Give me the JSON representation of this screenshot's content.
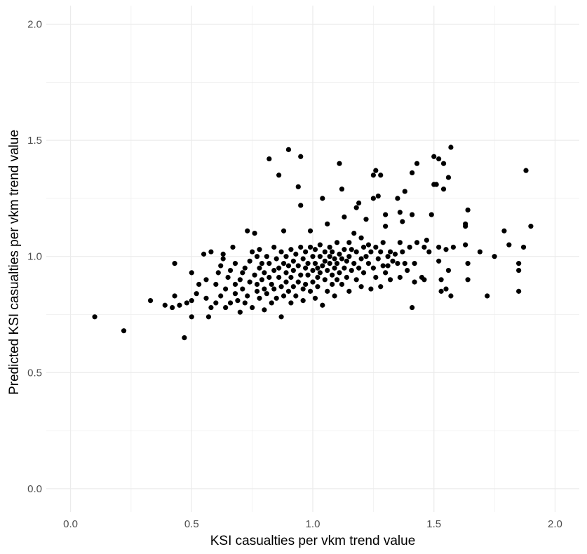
{
  "chart_data": {
    "type": "scatter",
    "title": "",
    "xlabel": "KSI casualties per vkm trend value",
    "ylabel": "Predicted KSI casualties per vkm trend value",
    "xlim": [
      -0.1,
      2.1
    ],
    "ylim": [
      -0.1,
      2.08
    ],
    "x_ticks": [
      "0.0",
      "0.5",
      "1.0",
      "1.5",
      "2.0"
    ],
    "y_ticks": [
      "0.0",
      "0.5",
      "1.0",
      "1.5",
      "2.0"
    ],
    "grid": true,
    "point_color": "#000000",
    "grid_color": "#ebebeb",
    "points": [
      [
        0.1,
        0.74
      ],
      [
        0.22,
        0.68
      ],
      [
        0.33,
        0.81
      ],
      [
        0.39,
        0.79
      ],
      [
        0.42,
        0.78
      ],
      [
        0.43,
        0.83
      ],
      [
        0.43,
        0.97
      ],
      [
        0.45,
        0.79
      ],
      [
        0.47,
        0.65
      ],
      [
        0.48,
        0.8
      ],
      [
        0.5,
        0.81
      ],
      [
        0.5,
        0.74
      ],
      [
        0.5,
        0.93
      ],
      [
        0.52,
        0.84
      ],
      [
        0.53,
        0.88
      ],
      [
        0.55,
        1.01
      ],
      [
        0.56,
        0.82
      ],
      [
        0.56,
        0.9
      ],
      [
        0.57,
        0.74
      ],
      [
        0.58,
        0.78
      ],
      [
        0.58,
        1.02
      ],
      [
        0.6,
        0.8
      ],
      [
        0.6,
        0.88
      ],
      [
        0.61,
        0.93
      ],
      [
        0.62,
        0.83
      ],
      [
        0.62,
        0.96
      ],
      [
        0.63,
        0.99
      ],
      [
        0.63,
        1.01
      ],
      [
        0.64,
        0.78
      ],
      [
        0.64,
        0.86
      ],
      [
        0.65,
        0.91
      ],
      [
        0.66,
        0.8
      ],
      [
        0.66,
        0.94
      ],
      [
        0.67,
        1.04
      ],
      [
        0.68,
        0.84
      ],
      [
        0.68,
        0.88
      ],
      [
        0.68,
        0.97
      ],
      [
        0.69,
        0.81
      ],
      [
        0.7,
        0.76
      ],
      [
        0.7,
        0.9
      ],
      [
        0.71,
        0.93
      ],
      [
        0.71,
        0.86
      ],
      [
        0.72,
        0.95
      ],
      [
        0.72,
        0.8
      ],
      [
        0.73,
        1.11
      ],
      [
        0.73,
        0.83
      ],
      [
        0.74,
        0.98
      ],
      [
        0.74,
        0.89
      ],
      [
        0.75,
        1.02
      ],
      [
        0.75,
        0.78
      ],
      [
        0.76,
        1.1
      ],
      [
        0.76,
        0.92
      ],
      [
        0.77,
        0.85
      ],
      [
        0.77,
        1.0
      ],
      [
        0.77,
        0.88
      ],
      [
        0.78,
        0.95
      ],
      [
        0.78,
        0.82
      ],
      [
        0.78,
        1.03
      ],
      [
        0.79,
        0.9
      ],
      [
        0.79,
        0.97
      ],
      [
        0.8,
        0.77
      ],
      [
        0.8,
        0.86
      ],
      [
        0.8,
        0.93
      ],
      [
        0.81,
        1.0
      ],
      [
        0.81,
        0.84
      ],
      [
        0.82,
        1.42
      ],
      [
        0.82,
        0.91
      ],
      [
        0.82,
        0.97
      ],
      [
        0.83,
        0.8
      ],
      [
        0.83,
        0.88
      ],
      [
        0.84,
        1.04
      ],
      [
        0.84,
        0.94
      ],
      [
        0.84,
        0.86
      ],
      [
        0.85,
        0.99
      ],
      [
        0.85,
        0.82
      ],
      [
        0.86,
        1.35
      ],
      [
        0.86,
        0.91
      ],
      [
        0.86,
        0.95
      ],
      [
        0.87,
        1.02
      ],
      [
        0.87,
        0.74
      ],
      [
        0.87,
        0.87
      ],
      [
        0.88,
        0.97
      ],
      [
        0.88,
        1.11
      ],
      [
        0.88,
        0.83
      ],
      [
        0.89,
        0.93
      ],
      [
        0.89,
        1.0
      ],
      [
        0.89,
        0.89
      ],
      [
        0.9,
        1.46
      ],
      [
        0.9,
        0.85
      ],
      [
        0.9,
        0.96
      ],
      [
        0.91,
        1.03
      ],
      [
        0.91,
        0.91
      ],
      [
        0.91,
        0.8
      ],
      [
        0.92,
        0.98
      ],
      [
        0.92,
        0.87
      ],
      [
        0.92,
        0.94
      ],
      [
        0.93,
        1.01
      ],
      [
        0.93,
        0.83
      ],
      [
        0.94,
        1.3
      ],
      [
        0.94,
        0.96
      ],
      [
        0.94,
        0.89
      ],
      [
        0.95,
        1.43
      ],
      [
        0.95,
        1.04
      ],
      [
        0.95,
        1.22
      ],
      [
        0.95,
        0.92
      ],
      [
        0.96,
        0.86
      ],
      [
        0.96,
        0.99
      ],
      [
        0.96,
        0.81
      ],
      [
        0.97,
        0.95
      ],
      [
        0.97,
        1.02
      ],
      [
        0.97,
        0.88
      ],
      [
        0.98,
        0.92
      ],
      [
        0.98,
        0.97
      ],
      [
        0.99,
        1.04
      ],
      [
        0.99,
        0.85
      ],
      [
        0.99,
        1.11
      ],
      [
        1.0,
        0.94
      ],
      [
        1.0,
        0.89
      ],
      [
        1.0,
        1.0
      ],
      [
        1.01,
        0.97
      ],
      [
        1.01,
        0.82
      ],
      [
        1.01,
        1.03
      ],
      [
        1.02,
        0.91
      ],
      [
        1.02,
        0.95
      ],
      [
        1.02,
        0.87
      ],
      [
        1.03,
        1.0
      ],
      [
        1.03,
        0.93
      ],
      [
        1.03,
        1.05
      ],
      [
        1.04,
        1.25
      ],
      [
        1.04,
        0.79
      ],
      [
        1.04,
        0.96
      ],
      [
        1.05,
        1.02
      ],
      [
        1.05,
        0.9
      ],
      [
        1.05,
        0.98
      ],
      [
        1.06,
        1.14
      ],
      [
        1.06,
        0.85
      ],
      [
        1.06,
        0.94
      ],
      [
        1.07,
        1.0
      ],
      [
        1.07,
        0.97
      ],
      [
        1.07,
        1.04
      ],
      [
        1.08,
        0.92
      ],
      [
        1.08,
        0.88
      ],
      [
        1.08,
        1.02
      ],
      [
        1.09,
        0.95
      ],
      [
        1.09,
        0.99
      ],
      [
        1.09,
        0.83
      ],
      [
        1.1,
        1.06
      ],
      [
        1.1,
        0.9
      ],
      [
        1.1,
        0.97
      ],
      [
        1.11,
        1.4
      ],
      [
        1.11,
        0.93
      ],
      [
        1.11,
        1.01
      ],
      [
        1.12,
        1.29
      ],
      [
        1.12,
        0.88
      ],
      [
        1.12,
        0.99
      ],
      [
        1.13,
        1.17
      ],
      [
        1.13,
        0.95
      ],
      [
        1.13,
        1.03
      ],
      [
        1.14,
        0.91
      ],
      [
        1.14,
        0.98
      ],
      [
        1.15,
        1.06
      ],
      [
        1.15,
        0.85
      ],
      [
        1.15,
        1.0
      ],
      [
        1.16,
        0.94
      ],
      [
        1.16,
        1.03
      ],
      [
        1.17,
        1.1
      ],
      [
        1.17,
        0.97
      ],
      [
        1.18,
        1.21
      ],
      [
        1.18,
        0.9
      ],
      [
        1.18,
        1.02
      ],
      [
        1.19,
        1.23
      ],
      [
        1.19,
        0.95
      ],
      [
        1.2,
        1.08
      ],
      [
        1.2,
        0.99
      ],
      [
        1.2,
        0.87
      ],
      [
        1.21,
        1.04
      ],
      [
        1.21,
        0.93
      ],
      [
        1.22,
        1.0
      ],
      [
        1.22,
        1.16
      ],
      [
        1.23,
        0.97
      ],
      [
        1.23,
        1.05
      ],
      [
        1.24,
        0.86
      ],
      [
        1.24,
        1.02
      ],
      [
        1.25,
        1.35
      ],
      [
        1.25,
        1.25
      ],
      [
        1.25,
        0.95
      ],
      [
        1.26,
        1.37
      ],
      [
        1.26,
        0.91
      ],
      [
        1.26,
        1.04
      ],
      [
        1.27,
        1.26
      ],
      [
        1.27,
        0.99
      ],
      [
        1.28,
        1.35
      ],
      [
        1.28,
        0.87
      ],
      [
        1.28,
        1.02
      ],
      [
        1.29,
        0.96
      ],
      [
        1.29,
        1.06
      ],
      [
        1.3,
        1.18
      ],
      [
        1.3,
        1.13
      ],
      [
        1.3,
        0.93
      ],
      [
        1.31,
        1.0
      ],
      [
        1.31,
        0.96
      ],
      [
        1.32,
        1.02
      ],
      [
        1.32,
        0.9
      ],
      [
        1.33,
        0.98
      ],
      [
        1.34,
        1.01
      ],
      [
        1.35,
        0.97
      ],
      [
        1.35,
        1.25
      ],
      [
        1.36,
        1.19
      ],
      [
        1.36,
        1.06
      ],
      [
        1.36,
        0.91
      ],
      [
        1.37,
        1.15
      ],
      [
        1.37,
        1.02
      ],
      [
        1.38,
        1.28
      ],
      [
        1.38,
        0.97
      ],
      [
        1.39,
        0.94
      ],
      [
        1.4,
        1.04
      ],
      [
        1.41,
        1.18
      ],
      [
        1.41,
        1.36
      ],
      [
        1.41,
        0.78
      ],
      [
        1.42,
        0.97
      ],
      [
        1.42,
        0.89
      ],
      [
        1.43,
        1.4
      ],
      [
        1.43,
        1.06
      ],
      [
        1.45,
        0.91
      ],
      [
        1.46,
        1.04
      ],
      [
        1.46,
        0.9
      ],
      [
        1.47,
        1.07
      ],
      [
        1.48,
        1.02
      ],
      [
        1.49,
        1.18
      ],
      [
        1.5,
        1.43
      ],
      [
        1.5,
        1.31
      ],
      [
        1.51,
        1.31
      ],
      [
        1.52,
        1.42
      ],
      [
        1.52,
        1.04
      ],
      [
        1.52,
        0.98
      ],
      [
        1.53,
        0.85
      ],
      [
        1.53,
        0.9
      ],
      [
        1.54,
        1.29
      ],
      [
        1.54,
        1.4
      ],
      [
        1.55,
        1.03
      ],
      [
        1.55,
        0.86
      ],
      [
        1.56,
        1.34
      ],
      [
        1.56,
        0.94
      ],
      [
        1.57,
        1.47
      ],
      [
        1.57,
        0.83
      ],
      [
        1.58,
        1.04
      ],
      [
        1.63,
        1.14
      ],
      [
        1.63,
        1.13
      ],
      [
        1.63,
        1.05
      ],
      [
        1.64,
        0.97
      ],
      [
        1.64,
        0.9
      ],
      [
        1.64,
        1.2
      ],
      [
        1.69,
        1.02
      ],
      [
        1.72,
        0.83
      ],
      [
        1.75,
        1.0
      ],
      [
        1.79,
        1.11
      ],
      [
        1.81,
        1.05
      ],
      [
        1.85,
        0.97
      ],
      [
        1.85,
        0.94
      ],
      [
        1.85,
        0.85
      ],
      [
        1.87,
        1.04
      ],
      [
        1.88,
        1.37
      ],
      [
        1.9,
        1.13
      ]
    ]
  }
}
